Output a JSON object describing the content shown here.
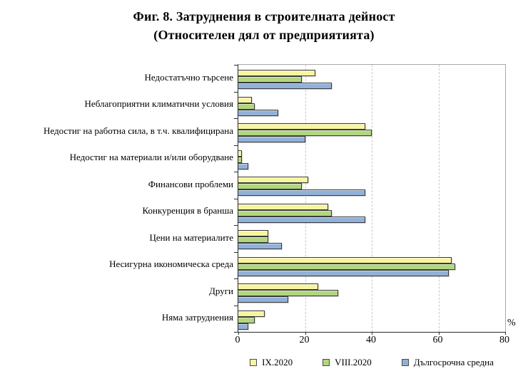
{
  "title_line1": "Фиг. 8. Затруднения в строителната дейност",
  "title_line2": "(Относителен дял от предприятията)",
  "chart_data": {
    "type": "bar",
    "orientation": "horizontal",
    "title": "Фиг. 8. Затруднения в строителната дейност (Относителен дял от предприятията)",
    "unit_label": "%",
    "xlim": [
      0,
      80
    ],
    "xticks": [
      0,
      20,
      40,
      60,
      80
    ],
    "gridlines": [
      20,
      40,
      60
    ],
    "grid": true,
    "legend_position": "bottom",
    "categories": [
      "Недостатъчно търсене",
      "Неблагоприятни климатични условия",
      "Недостиг на работна сила, в т.ч. квалифицирана",
      "Недостиг на материали и/или оборудване",
      "Финансови проблеми",
      "Конкуренция в бранша",
      "Цени на материалите",
      "Несигурна икономическа среда",
      "Други",
      "Няма затруднения"
    ],
    "series": [
      {
        "name": "IX.2020",
        "color": "#F8F5A0",
        "values": [
          23,
          4,
          38,
          1,
          21,
          27,
          9,
          64,
          24,
          8
        ]
      },
      {
        "name": "VIII.2020",
        "color": "#B1D77E",
        "values": [
          19,
          5,
          40,
          1,
          19,
          28,
          9,
          65,
          30,
          5
        ]
      },
      {
        "name": "Дългосрочна средна",
        "color": "#91B1D8",
        "values": [
          28,
          12,
          20,
          3,
          38,
          38,
          13,
          63,
          15,
          3
        ]
      }
    ]
  }
}
